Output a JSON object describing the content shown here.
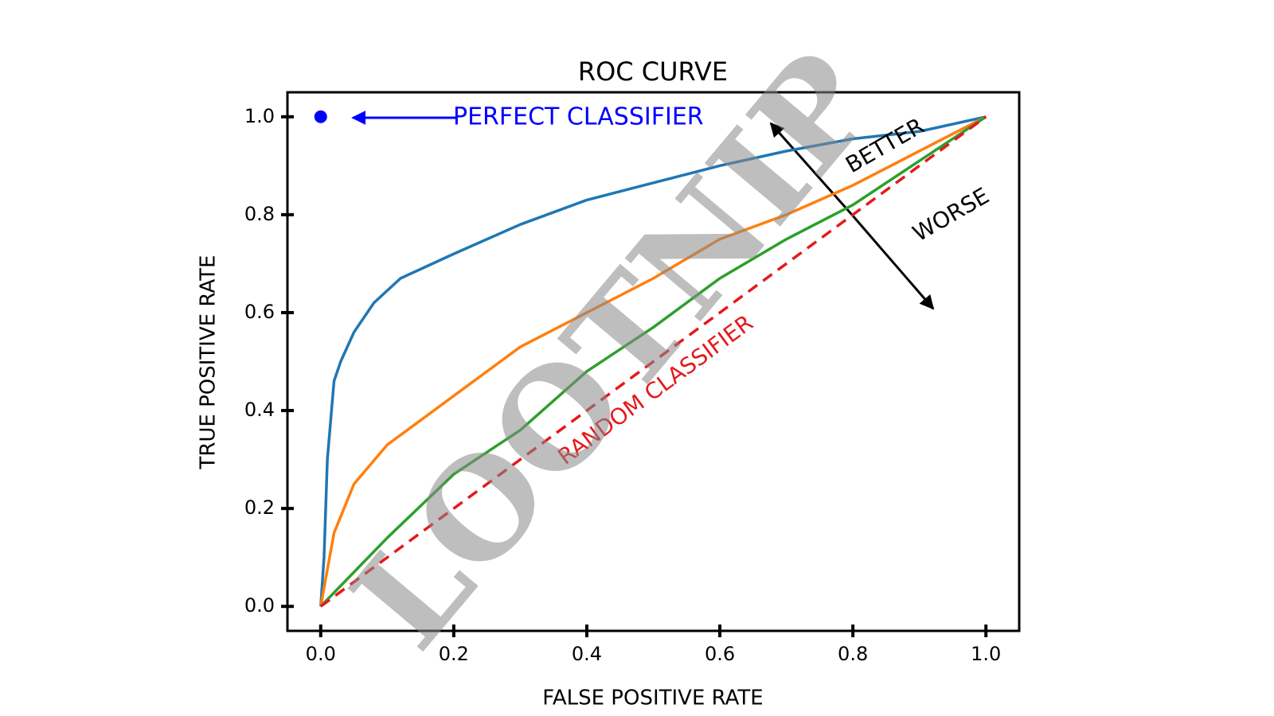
{
  "chart_data": {
    "type": "line",
    "title": "ROC CURVE",
    "xlabel": "FALSE POSITIVE RATE",
    "ylabel": "TRUE POSITIVE RATE",
    "xlim": [
      -0.05,
      1.05
    ],
    "ylim": [
      -0.05,
      1.05
    ],
    "xticks": [
      {
        "value": 0,
        "label": "0.0"
      },
      0.2,
      0.4,
      0.6,
      0.8,
      {
        "value": 1,
        "label": "1.0"
      }
    ],
    "yticks": [
      {
        "value": 0,
        "label": "0.0"
      },
      0.2,
      0.4,
      0.6,
      0.8,
      {
        "value": 1,
        "label": "1.0"
      }
    ],
    "series": [
      {
        "color": "#1f77b4",
        "dash": false,
        "x": [
          0,
          0.005,
          0.01,
          0.02,
          0.03,
          0.05,
          0.08,
          0.12,
          0.2,
          0.3,
          0.4,
          0.5,
          0.6,
          0.7,
          0.8,
          0.9,
          1.0
        ],
        "values": [
          0,
          0.1,
          0.3,
          0.46,
          0.5,
          0.56,
          0.62,
          0.67,
          0.72,
          0.78,
          0.83,
          0.865,
          0.9,
          0.93,
          0.955,
          0.97,
          1.0
        ]
      },
      {
        "color": "#ff7f0e",
        "dash": false,
        "x": [
          0,
          0.02,
          0.05,
          0.1,
          0.2,
          0.3,
          0.4,
          0.5,
          0.6,
          0.7,
          0.8,
          0.9,
          1.0
        ],
        "values": [
          0,
          0.15,
          0.25,
          0.33,
          0.43,
          0.53,
          0.6,
          0.67,
          0.75,
          0.8,
          0.86,
          0.93,
          1.0
        ]
      },
      {
        "color": "#2ca02c",
        "dash": false,
        "x": [
          0,
          0.05,
          0.1,
          0.2,
          0.3,
          0.4,
          0.5,
          0.6,
          0.7,
          0.8,
          0.9,
          1.0
        ],
        "values": [
          0,
          0.07,
          0.14,
          0.27,
          0.36,
          0.48,
          0.57,
          0.67,
          0.75,
          0.82,
          0.91,
          1.0
        ]
      },
      {
        "color": "#e41a1c",
        "dash": true,
        "x": [
          0,
          1
        ],
        "values": [
          0,
          1
        ]
      }
    ],
    "perfect_point": {
      "x": 0,
      "y": 1,
      "color": "#0000ff"
    },
    "annotations": [
      {
        "text": "PERFECT CLASSIFIER",
        "color": "#0000ff"
      },
      {
        "text": "BETTER",
        "color": "#000000"
      },
      {
        "text": "WORSE",
        "color": "#000000"
      },
      {
        "text": "RANDOM CLASSIFIER",
        "color": "#e41a1c"
      }
    ],
    "watermark": "LOOTNIP"
  }
}
